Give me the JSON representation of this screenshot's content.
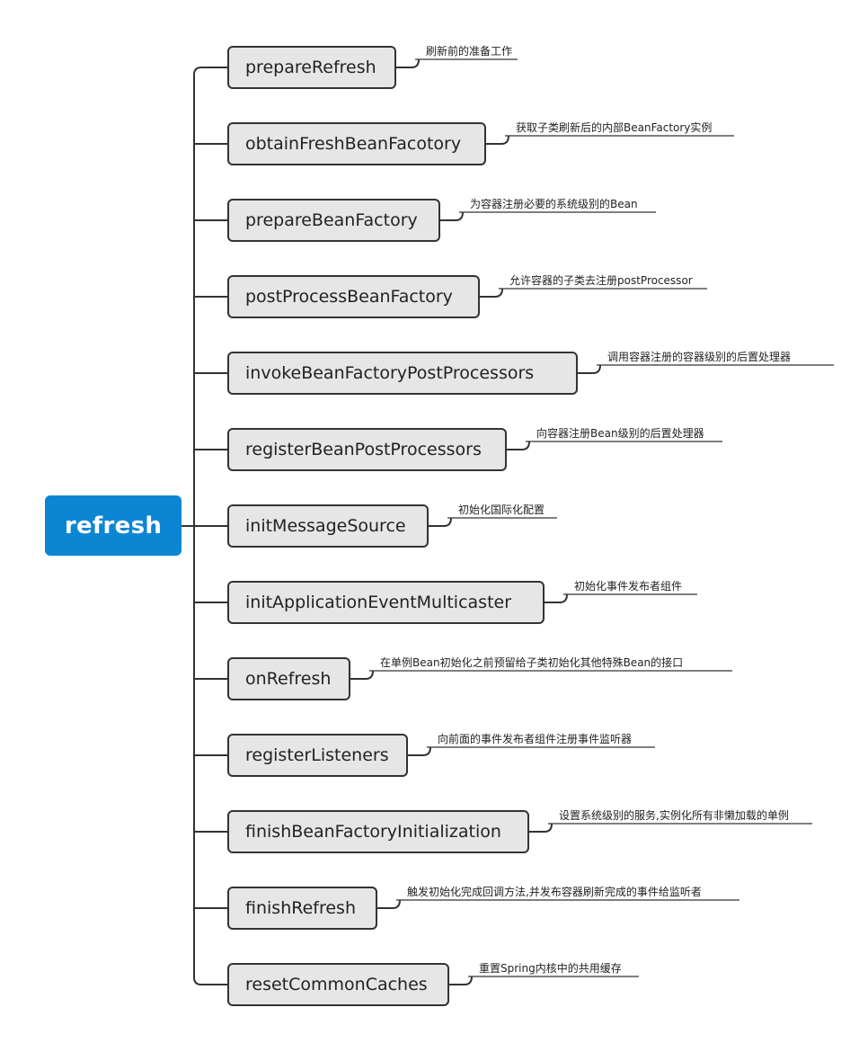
{
  "root": {
    "label": "refresh"
  },
  "colors": {
    "root_fill": "#0b86d3",
    "node_fill": "#e6e6e6",
    "line": "#333333"
  },
  "steps": [
    {
      "label": "prepareRefresh",
      "note": "刷新前的准备工作"
    },
    {
      "label": "obtainFreshBeanFacotory",
      "note": "获取子类刷新后的内部BeanFactory实例"
    },
    {
      "label": "prepareBeanFactory",
      "note": "为容器注册必要的系统级别的Bean"
    },
    {
      "label": "postProcessBeanFactory",
      "note": "允许容器的子类去注册postProcessor"
    },
    {
      "label": "invokeBeanFactoryPostProcessors",
      "note": "调用容器注册的容器级别的后置处理器"
    },
    {
      "label": "registerBeanPostProcessors",
      "note": "向容器注册Bean级别的后置处理器"
    },
    {
      "label": "initMessageSource",
      "note": "初始化国际化配置"
    },
    {
      "label": "initApplicationEventMulticaster",
      "note": "初始化事件发布者组件"
    },
    {
      "label": "onRefresh",
      "note": "在单例Bean初始化之前预留给子类初始化其他特殊Bean的接口"
    },
    {
      "label": "registerListeners",
      "note": "向前面的事件发布者组件注册事件监听器"
    },
    {
      "label": "finishBeanFactoryInitialization",
      "note": "设置系统级别的服务,实例化所有非懒加载的单例"
    },
    {
      "label": "finishRefresh",
      "note": "触发初始化完成回调方法,并发布容器刷新完成的事件给监听者"
    },
    {
      "label": "resetCommonCaches",
      "note": "重置Spring内核中的共用缓存"
    }
  ]
}
